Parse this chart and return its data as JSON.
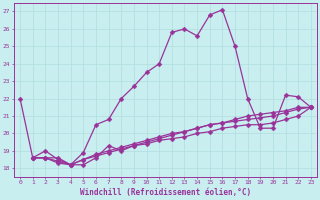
{
  "xlabel": "Windchill (Refroidissement éolien,°C)",
  "bg_color": "#c8eef0",
  "line_color": "#993399",
  "grid_color": "#b0dede",
  "xlim": [
    -0.5,
    23.5
  ],
  "ylim": [
    17.5,
    27.5
  ],
  "yticks": [
    18,
    19,
    20,
    21,
    22,
    23,
    24,
    25,
    26,
    27
  ],
  "xticks": [
    0,
    1,
    2,
    3,
    4,
    5,
    6,
    7,
    8,
    9,
    10,
    11,
    12,
    13,
    14,
    15,
    16,
    17,
    18,
    19,
    20,
    21,
    22,
    23
  ],
  "line1_x": [
    0,
    1,
    2,
    3,
    4,
    5,
    6,
    7,
    8,
    9,
    10,
    11,
    12,
    13,
    14,
    15,
    16,
    17,
    18,
    19,
    20,
    21,
    22,
    23
  ],
  "line1_y": [
    22.0,
    18.6,
    19.0,
    18.5,
    18.2,
    18.9,
    20.5,
    20.8,
    22.0,
    22.7,
    23.5,
    24.0,
    25.8,
    26.0,
    25.6,
    26.8,
    27.1,
    25.0,
    22.0,
    20.3,
    20.3,
    22.2,
    22.1,
    21.5
  ],
  "line2_x": [
    1,
    2,
    3,
    4,
    5,
    6,
    7,
    8,
    9,
    10,
    11,
    12,
    13,
    14,
    15,
    16,
    17,
    18,
    19,
    20,
    21,
    22,
    23
  ],
  "line2_y": [
    18.6,
    18.6,
    18.6,
    18.2,
    18.2,
    18.6,
    19.3,
    19.0,
    19.3,
    19.5,
    19.7,
    19.9,
    20.1,
    20.3,
    20.5,
    20.6,
    20.8,
    21.0,
    21.1,
    21.2,
    21.3,
    21.5,
    21.5
  ],
  "line3_x": [
    1,
    2,
    3,
    4,
    5,
    6,
    7,
    8,
    9,
    10,
    11,
    12,
    13,
    14,
    15,
    16,
    17,
    18,
    19,
    20,
    21,
    22,
    23
  ],
  "line3_y": [
    18.6,
    18.6,
    18.4,
    18.2,
    18.5,
    18.8,
    19.0,
    19.2,
    19.4,
    19.6,
    19.8,
    20.0,
    20.1,
    20.3,
    20.5,
    20.6,
    20.7,
    20.8,
    20.9,
    21.0,
    21.2,
    21.4,
    21.5
  ],
  "line4_x": [
    1,
    2,
    3,
    4,
    5,
    6,
    7,
    8,
    9,
    10,
    11,
    12,
    13,
    14,
    15,
    16,
    17,
    18,
    19,
    20,
    21,
    22,
    23
  ],
  "line4_y": [
    18.6,
    18.6,
    18.3,
    18.2,
    18.5,
    18.7,
    18.9,
    19.1,
    19.3,
    19.4,
    19.6,
    19.7,
    19.8,
    20.0,
    20.1,
    20.3,
    20.4,
    20.5,
    20.5,
    20.6,
    20.8,
    21.0,
    21.5
  ]
}
